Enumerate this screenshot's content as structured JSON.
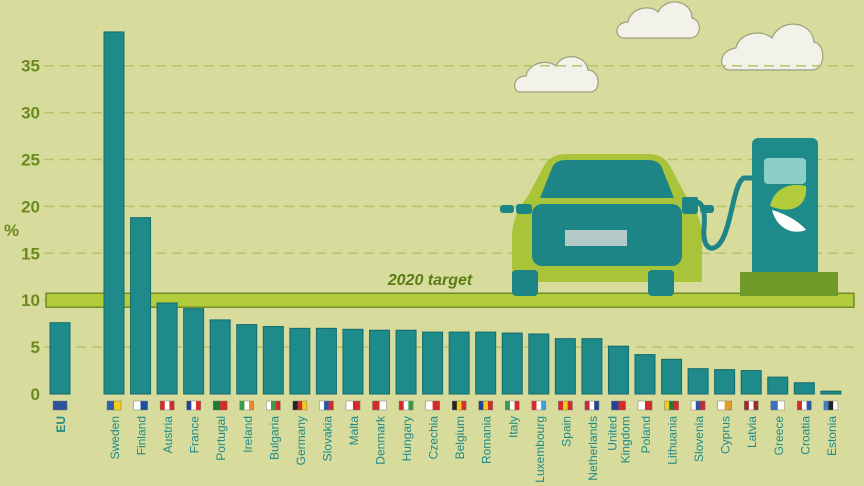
{
  "chart_data": {
    "type": "bar",
    "ylabel": "%",
    "ylim": [
      0,
      40
    ],
    "yticks": [
      "0",
      "5",
      "10",
      "15",
      "20",
      "25",
      "30",
      "35"
    ],
    "target_label": "2020 target",
    "target_value": 10,
    "categories": [
      "EU",
      "Sweden",
      "Finland",
      "Austria",
      "France",
      "Portugal",
      "Ireland",
      "Bulgaria",
      "Germany",
      "Slovakia",
      "Malta",
      "Denmark",
      "Hungary",
      "Czechia",
      "Belgium",
      "Romania",
      "Italy",
      "Luxembourg",
      "Spain",
      "Netherlands",
      "United Kingdom",
      "Poland",
      "Lithuania",
      "Slovenia",
      "Cyprus",
      "Latvia",
      "Greece",
      "Croatia",
      "Estonia"
    ],
    "values": [
      7.6,
      38.6,
      18.8,
      9.7,
      9.1,
      7.9,
      7.4,
      7.2,
      7.0,
      7.0,
      6.9,
      6.8,
      6.8,
      6.6,
      6.6,
      6.6,
      6.5,
      6.4,
      5.9,
      5.9,
      5.1,
      4.2,
      3.7,
      2.7,
      2.6,
      2.5,
      1.8,
      1.2,
      0.3
    ],
    "flags": [
      [
        "#2b52a0"
      ],
      [
        "#2c5fb0",
        "#f4cc1c"
      ],
      [
        "#ffffff",
        "#1d4ea3"
      ],
      [
        "#d42a2a",
        "#ffffff",
        "#d42a2a"
      ],
      [
        "#23409a",
        "#ffffff",
        "#e02b2b"
      ],
      [
        "#1b7a3a",
        "#d42a2a"
      ],
      [
        "#3a9c4a",
        "#ffffff",
        "#ef8a2c"
      ],
      [
        "#ffffff",
        "#3a9c4a",
        "#d42a2a"
      ],
      [
        "#222222",
        "#d42a2a",
        "#f4cc1c"
      ],
      [
        "#ffffff",
        "#2c54a8",
        "#d42a2a"
      ],
      [
        "#ffffff",
        "#d42a2a"
      ],
      [
        "#d42a2a",
        "#ffffff"
      ],
      [
        "#d42a2a",
        "#ffffff",
        "#3a9c4a"
      ],
      [
        "#ffffff",
        "#d42a2a"
      ],
      [
        "#222222",
        "#f4cc1c",
        "#e02b2b"
      ],
      [
        "#23409a",
        "#f4cc1c",
        "#d42a2a"
      ],
      [
        "#3a9c4a",
        "#ffffff",
        "#d42a2a"
      ],
      [
        "#d42a2a",
        "#ffffff",
        "#3aa6e0"
      ],
      [
        "#d42a2a",
        "#f4cc1c",
        "#d42a2a"
      ],
      [
        "#c8283a",
        "#ffffff",
        "#23409a"
      ],
      [
        "#23409a",
        "#d42a2a"
      ],
      [
        "#ffffff",
        "#d42a2a"
      ],
      [
        "#f4cc1c",
        "#1b7a3a",
        "#d42a2a"
      ],
      [
        "#ffffff",
        "#2c54a8",
        "#d42a2a"
      ],
      [
        "#ffffff",
        "#e69a2a"
      ],
      [
        "#9e2a2a",
        "#ffffff",
        "#9e2a2a"
      ],
      [
        "#3a6fc0",
        "#ffffff"
      ],
      [
        "#d42a2a",
        "#ffffff",
        "#2c54a8"
      ],
      [
        "#3a7ec8",
        "#222222",
        "#ffffff"
      ]
    ]
  },
  "colors": {
    "background": "#d7dc9c",
    "bar": "#1e8a8a",
    "bar_edge": "#156b6b",
    "axis_text": "#6b8a1e",
    "gridline": "#b6c46a",
    "target_band": "#b3cc3c",
    "target_text": "#5b7d14",
    "car_body": "#aac43a",
    "car_dark": "#1d8585",
    "pump": "#1e8a8a",
    "cloud": "#f2f2ea"
  }
}
